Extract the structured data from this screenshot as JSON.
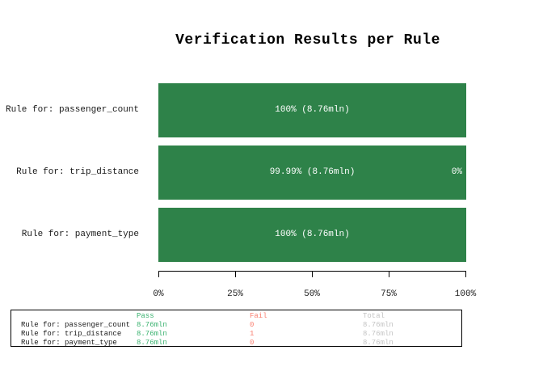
{
  "colors": {
    "bar_pass_green": "#2e8249",
    "bar_label_text": "#ffffff",
    "table_pass_text": "#3cb371",
    "table_fail_text": "#fa8072",
    "table_total_text": "#c4c4c4",
    "axis_text": "#1a1a1a"
  },
  "chart_data": {
    "type": "bar",
    "orientation": "horizontal",
    "stacked": true,
    "title": "Verification Results per Rule",
    "xlabel": "",
    "ylabel": "",
    "xlim": [
      0,
      100
    ],
    "x_ticks": [
      "0%",
      "25%",
      "50%",
      "75%",
      "100%"
    ],
    "grid": "off",
    "legend": "none",
    "categories": [
      "Rule for: passenger_count",
      "Rule for: trip_distance",
      "Rule for: payment_type"
    ],
    "series": [
      {
        "name": "Pass",
        "values": [
          100,
          99.99,
          100
        ],
        "color": "#2e8249"
      },
      {
        "name": "Fail",
        "values": [
          0,
          0.01,
          0
        ],
        "color": "#fa8072"
      }
    ],
    "bars": [
      {
        "category": "Rule for: passenger_count",
        "pass_pct": 100,
        "fail_pct": 0,
        "label": "100% (8.76mln)",
        "fail_label": ""
      },
      {
        "category": "Rule for: trip_distance",
        "pass_pct": 99.99,
        "fail_pct": 0.01,
        "label": "99.99% (8.76mln)",
        "fail_label": "0%"
      },
      {
        "category": "Rule for: payment_type",
        "pass_pct": 100,
        "fail_pct": 0,
        "label": "100% (8.76mln)",
        "fail_label": ""
      }
    ]
  },
  "summary_table": {
    "columns": [
      "",
      "Pass",
      "Fail",
      "Total"
    ],
    "rows": [
      {
        "label": "Rule for: passenger_count",
        "pass": "8.76mln",
        "fail": "0",
        "total": "8.76mln"
      },
      {
        "label": "Rule for: trip_distance",
        "pass": "8.76mln",
        "fail": "1",
        "total": "8.76mln"
      },
      {
        "label": "Rule for: payment_type",
        "pass": "8.76mln",
        "fail": "0",
        "total": "8.76mln"
      }
    ]
  }
}
